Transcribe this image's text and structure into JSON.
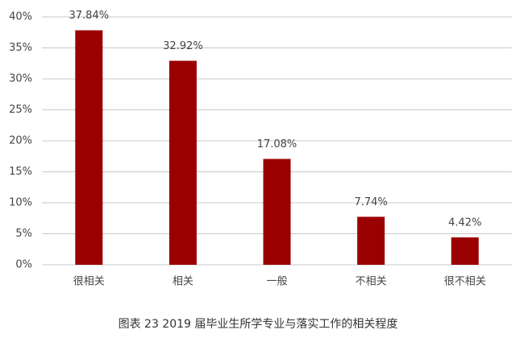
{
  "chart_data": {
    "type": "bar",
    "title": "图表 23  2019 届毕业生所学专业与落实工作的相关程度",
    "categories": [
      "很相关",
      "相关",
      "一般",
      "不相关",
      "很不相关"
    ],
    "values": [
      37.84,
      32.92,
      17.08,
      7.74,
      4.42
    ],
    "value_labels": [
      "37.84%",
      "32.92%",
      "17.08%",
      "7.74%",
      "4.42%"
    ],
    "color": "#9b0000",
    "ylim": [
      0,
      40
    ],
    "yticks": [
      {
        "value": 0,
        "label": "0%"
      },
      {
        "value": 5,
        "label": "5%"
      },
      {
        "value": 10,
        "label": "10%"
      },
      {
        "value": 15,
        "label": "15%"
      },
      {
        "value": 20,
        "label": "20%"
      },
      {
        "value": 25,
        "label": "25%"
      },
      {
        "value": 30,
        "label": "30%"
      },
      {
        "value": 35,
        "label": "35%"
      },
      {
        "value": 40,
        "label": "40%"
      }
    ],
    "grid": true
  }
}
